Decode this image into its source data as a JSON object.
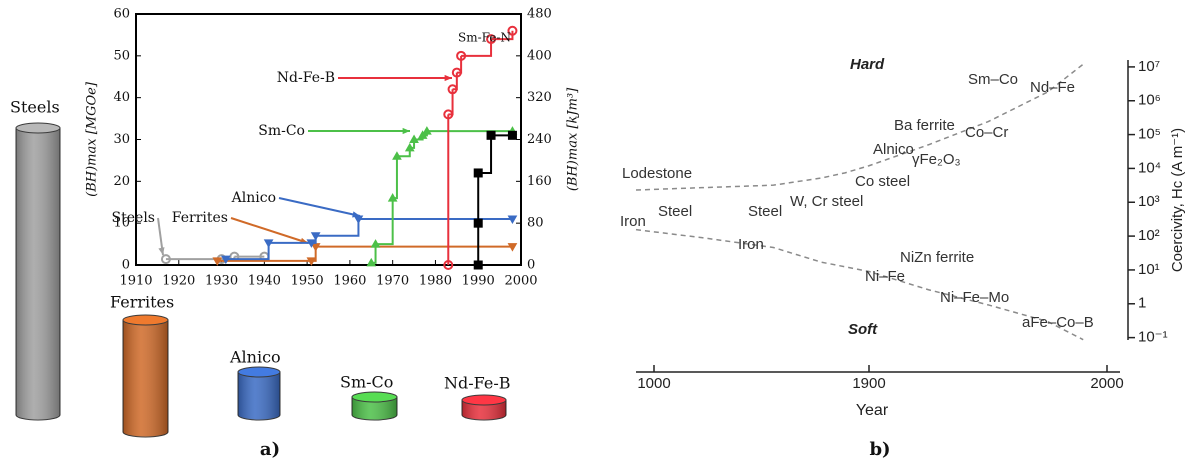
{
  "chart_data": [
    {
      "type": "step",
      "ylabel": "(BH)max [MGOe]",
      "y2label": "(BH)max [kJm³]",
      "caption": "a)",
      "xlim": [
        1910,
        2000
      ],
      "xticks": [
        1910,
        1920,
        1930,
        1940,
        1950,
        1960,
        1970,
        1980,
        1990,
        2000
      ],
      "ylim": [
        0,
        60
      ],
      "yticks": [
        0,
        10,
        20,
        30,
        40,
        50,
        60
      ],
      "y2lim": [
        0,
        480
      ],
      "y2ticks": [
        0,
        80,
        160,
        240,
        320,
        400,
        480
      ],
      "series": [
        {
          "name": "Steels",
          "color": "#a0a0a0",
          "marker": "circle",
          "x": [
            1917,
            1930,
            1933,
            1940
          ],
          "values": [
            1.4,
            1.4,
            2,
            2
          ]
        },
        {
          "name": "Ferrites",
          "color": "#d06a28",
          "marker": "triangle-down",
          "x": [
            1929,
            1951,
            1952,
            1998
          ],
          "values": [
            1,
            1,
            4.4,
            4.4
          ]
        },
        {
          "name": "Alnico",
          "color": "#3a6bc4",
          "marker": "triangle-down",
          "x": [
            1931,
            1941,
            1951,
            1952,
            1962,
            1998
          ],
          "values": [
            1.4,
            5.3,
            5.3,
            7,
            11,
            11
          ]
        },
        {
          "name": "Sm-Co",
          "color": "#4cc048",
          "marker": "triangle",
          "x": [
            1965,
            1966,
            1970,
            1971,
            1974,
            1975,
            1977,
            1978,
            1998
          ],
          "values": [
            0.5,
            5,
            16,
            26,
            28,
            30,
            31,
            32,
            32
          ]
        },
        {
          "name": "Nd-Fe-B",
          "color": "#e8303c",
          "marker": "circle",
          "x": [
            1983,
            1983,
            1984,
            1985,
            1986,
            1993,
            1998
          ],
          "values": [
            0,
            36,
            42,
            46,
            50,
            54,
            56
          ]
        },
        {
          "name": "Sm-Fe-N",
          "color": "#000000",
          "marker": "square",
          "x": [
            1990,
            1990,
            1990,
            1993,
            1998
          ],
          "values": [
            0,
            10,
            22,
            31,
            31
          ]
        }
      ]
    },
    {
      "type": "line",
      "xlabel": "Year",
      "ylabel": "Coercivity, Hc (A m⁻¹)",
      "caption": "b)",
      "log_y": true,
      "xlim": [
        925,
        2005
      ],
      "xticks": [
        1000,
        1900,
        2000
      ],
      "ylim": [
        0.085,
        16000000
      ],
      "yticks": [
        {
          "value": 0.1,
          "label": "10⁻¹"
        },
        1,
        {
          "value": 10,
          "label": "10¹"
        },
        {
          "value": 100,
          "label": "10²"
        },
        {
          "value": 1000,
          "label": "10³"
        },
        {
          "value": 10000,
          "label": "10⁴"
        },
        {
          "value": 100000,
          "label": "10⁵"
        },
        {
          "value": 1000000,
          "label": "10⁶"
        },
        {
          "value": 10000000,
          "label": "10⁷"
        }
      ],
      "series": [
        {
          "color": "#8a8a8a",
          "x": [
            925,
            1200,
            1500,
            1700,
            1800,
            1900,
            1925,
            1950,
            1975,
            1990
          ],
          "values": [
            2300,
            2700,
            3200,
            5200,
            7400,
            12000,
            50000,
            240000,
            1800000,
            12000000
          ]
        },
        {
          "color": "#8a8a8a",
          "x": [
            925,
            1200,
            1500,
            1700,
            1900,
            1925,
            1950,
            1975,
            1990
          ],
          "values": [
            155,
            90,
            46,
            17,
            9,
            2.6,
            0.93,
            0.3,
            0.087
          ]
        }
      ],
      "annotations": [
        "Hard",
        "Lodestone",
        "Iron",
        "Steel",
        "Steel",
        "Iron",
        "W, Cr steel",
        "Co steel",
        "Alnico",
        "Ba ferrite",
        "γFe₂O₃",
        "Co–Cr",
        "Sm–Co",
        "Nd–Fe",
        "NiZn ferrite",
        "Ni–Fe",
        "Ni–Fe–Mo",
        "aFe–Co–B",
        "Soft"
      ]
    }
  ]
}
